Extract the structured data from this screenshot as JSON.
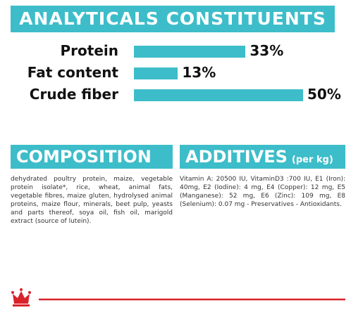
{
  "header": {
    "title": "ANALYTICALS CONSTITUENTS"
  },
  "chart_data": {
    "type": "bar",
    "orientation": "horizontal",
    "categories": [
      "Protein",
      "Fat content",
      "Crude fiber"
    ],
    "values": [
      33,
      13,
      50
    ],
    "value_labels": [
      "33%",
      "13%",
      "50%"
    ],
    "color": "#3dbdc9"
  },
  "composition": {
    "title": "COMPOSITION",
    "text": "dehydrated poultry protein, maize, vegetable protein isolate*, rice, wheat, animal fats, vegetable fibres, maize gluten, hydrolysed animal proteins, maize flour, minerals, beet pulp, yeasts and parts thereof, soya oil, fish oil, marigold extract (source of lutein)."
  },
  "additives": {
    "title": "ADDITIVES",
    "unit": "(per kg)",
    "text": "Vitamin A: 20500 IU, VitaminD3 :700 IU, E1 (Iron): 40mg, E2 (Iodine): 4 mg, E4 (Copper): 12 mg, E5 (Manganese): 52 mg, E6 (Zinc): 109 mg, E8 (Selenium): 0.07 mg - Preservatives - Antioxidants."
  }
}
